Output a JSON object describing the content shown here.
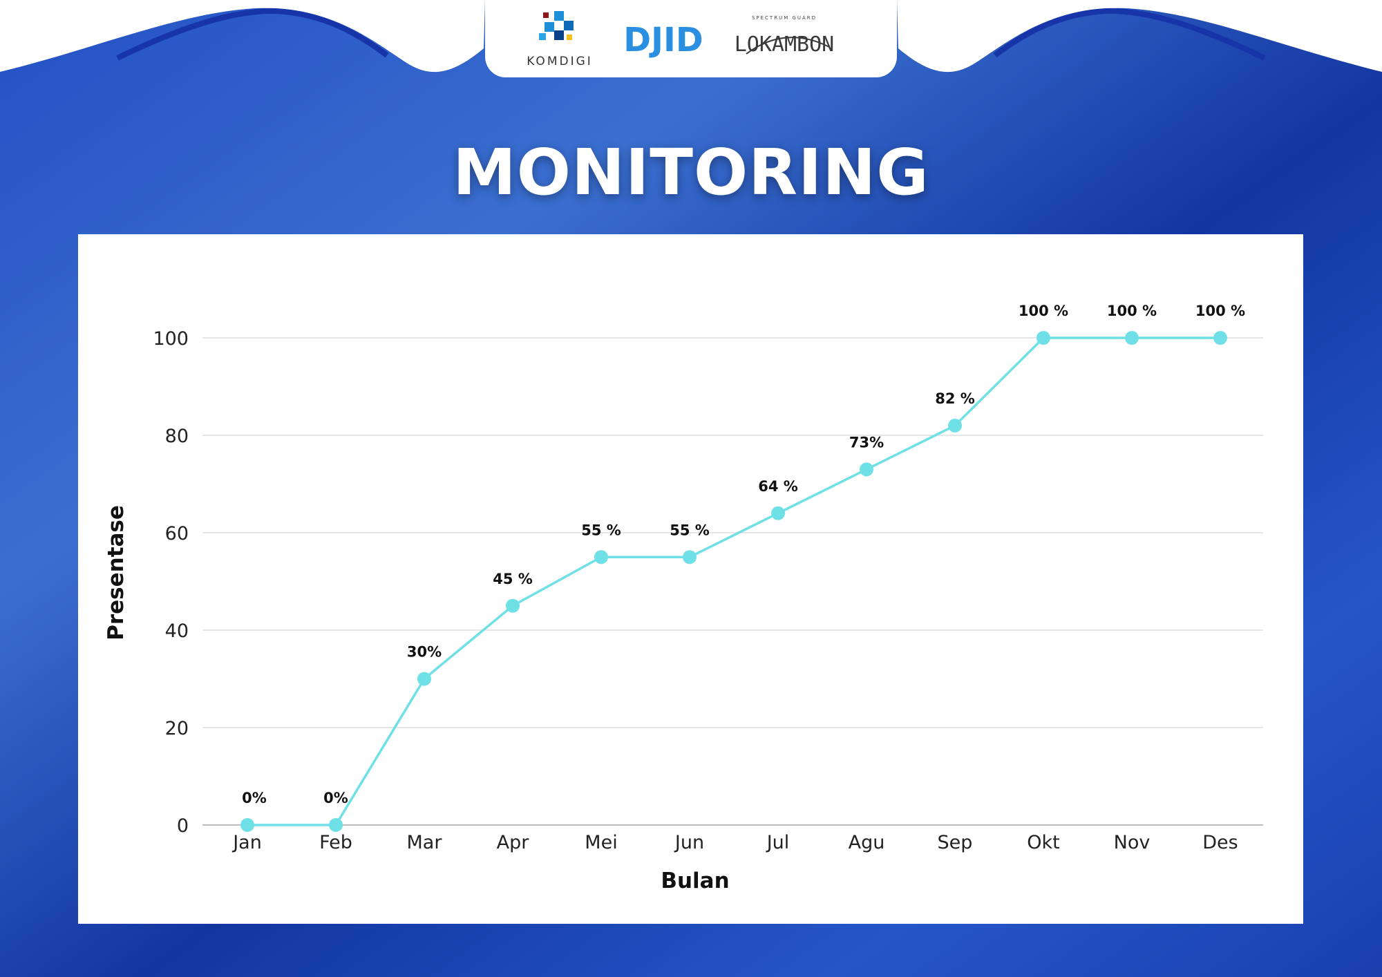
{
  "header": {
    "logos": [
      {
        "name": "komdigi-logo",
        "text": "KOMDIGI"
      },
      {
        "name": "djid-logo",
        "text": "DJID"
      },
      {
        "name": "lokambon-logo",
        "text": "LOKAMBON",
        "tagline": "SPECTRUM GUARD"
      }
    ]
  },
  "title": "MONITORING",
  "colors": {
    "background": "#1b47b8",
    "line": "#6ee0e6",
    "grid": "#dddddd",
    "card": "#ffffff"
  },
  "chart_data": {
    "type": "line",
    "categories": [
      "Jan",
      "Feb",
      "Mar",
      "Apr",
      "Mei",
      "Jun",
      "Jul",
      "Agu",
      "Sep",
      "Okt",
      "Nov",
      "Des"
    ],
    "series": [
      {
        "values": [
          0,
          0,
          30,
          45,
          55,
          55,
          64,
          73,
          82,
          100,
          100,
          100
        ],
        "labels": [
          "0%",
          "0%",
          "30%",
          "45 %",
          "55 %",
          "55 %",
          "64 %",
          "73%",
          "82 %",
          "100 %",
          "100 %",
          "100 %"
        ]
      }
    ],
    "xlabel": "Bulan",
    "ylabel": "Presentase",
    "ylim": [
      0,
      100
    ],
    "yticks": [
      0,
      20,
      40,
      60,
      80,
      100
    ],
    "grid": true,
    "legend": "none"
  }
}
